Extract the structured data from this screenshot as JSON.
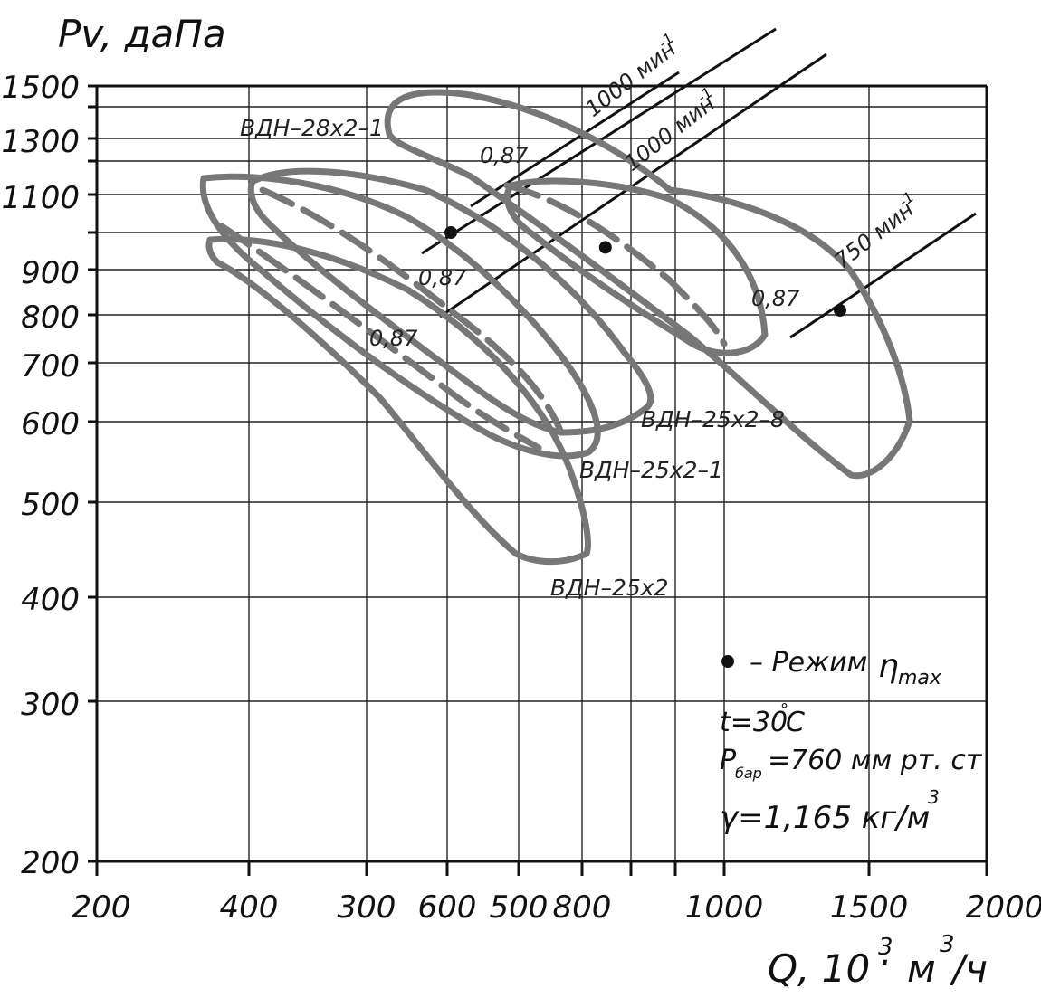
{
  "chart_data": {
    "type": "line",
    "ylabel": "Pv, даПа",
    "xlabel_main": "Q, 10",
    "xlabel_sup1": "3",
    "xlabel_dot": "·",
    "xlabel_unit": "м",
    "xlabel_sup2": "3",
    "xlabel_tail": "/ч",
    "y_ticks": [
      "1500",
      "1300",
      "1100",
      "900",
      "800",
      "700",
      "600",
      "500",
      "400",
      "300",
      "200"
    ],
    "x_ticks": [
      "200",
      "400",
      "300",
      "600",
      "500",
      "800",
      "1000",
      "1500",
      "2000"
    ],
    "curve_labels": [
      "ВДН–28х2–1",
      "ВДН–25х2–8",
      "ВДН–25х2–1",
      "ВДН–25х2"
    ],
    "efficiency_labels": [
      "0,87",
      "0,87",
      "0,87",
      "0,87"
    ],
    "rpm_labels": [
      {
        "text": "1000 мин",
        "sup": "-1"
      },
      {
        "text": "1000 мин",
        "sup": "-1"
      },
      {
        "text": "750 мин",
        "sup": "-1"
      }
    ],
    "legend": {
      "marker_text": "– Режим",
      "eta": "η",
      "eta_sub": "max"
    },
    "notes": {
      "temp": "t=30",
      "temp_deg": "°",
      "temp_unit": "C",
      "pbar_p": "P",
      "pbar_sub": "бар",
      "pbar_val": "=760 мм рт. ст",
      "density_val": "γ=1,165 кг/м",
      "density_sup": "3"
    },
    "max_efficiency_points": [
      {
        "q": 600,
        "p": 1000
      },
      {
        "q": 590,
        "p": 960
      },
      {
        "q": 1400,
        "p": 810
      }
    ]
  }
}
